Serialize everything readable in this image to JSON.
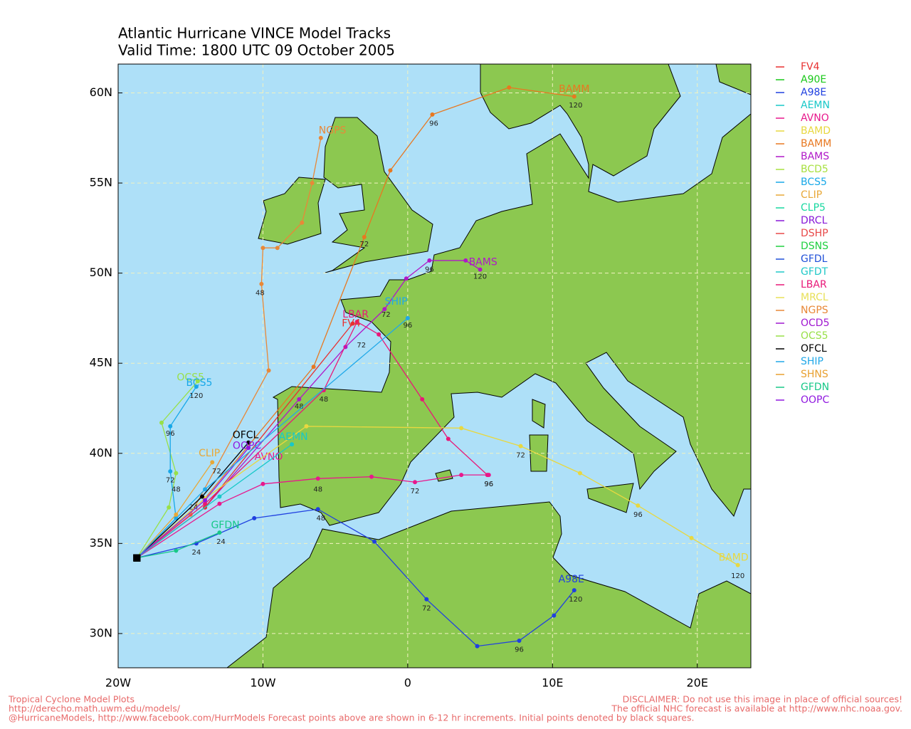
{
  "header": {
    "title": "Atlantic Hurricane VINCE Model Tracks",
    "subtitle": "Valid Time: 1800 UTC 09 October 2005"
  },
  "map": {
    "lon_range": [
      -20,
      23.7
    ],
    "lat_range": [
      28.1,
      61.6
    ],
    "lat_ticks": [
      {
        "value": 30,
        "label": "30N"
      },
      {
        "value": 35,
        "label": "35N"
      },
      {
        "value": 40,
        "label": "40N"
      },
      {
        "value": 45,
        "label": "45N"
      },
      {
        "value": 50,
        "label": "50N"
      },
      {
        "value": 55,
        "label": "55N"
      },
      {
        "value": 60,
        "label": "60N"
      }
    ],
    "lon_ticks": [
      {
        "value": -20,
        "label": "20W"
      },
      {
        "value": -10,
        "label": "10W"
      },
      {
        "value": 0,
        "label": "0"
      },
      {
        "value": 10,
        "label": "10E"
      },
      {
        "value": 20,
        "label": "20E"
      }
    ],
    "grid": true
  },
  "legend": [
    {
      "name": "FV4",
      "color": "#e83030"
    },
    {
      "name": "A90E",
      "color": "#18c818"
    },
    {
      "name": "A98E",
      "color": "#2040e0"
    },
    {
      "name": "AEMN",
      "color": "#18c8c8"
    },
    {
      "name": "AVNO",
      "color": "#e8188c"
    },
    {
      "name": "BAMD",
      "color": "#e8d840"
    },
    {
      "name": "BAMM",
      "color": "#e87820"
    },
    {
      "name": "BAMS",
      "color": "#b018c8"
    },
    {
      "name": "BCD5",
      "color": "#a8e040"
    },
    {
      "name": "BCS5",
      "color": "#18a8e8"
    },
    {
      "name": "CLIP",
      "color": "#e8a838"
    },
    {
      "name": "CLP5",
      "color": "#18d8a0"
    },
    {
      "name": "DRCL",
      "color": "#8818d8"
    },
    {
      "name": "DSHP",
      "color": "#e84848"
    },
    {
      "name": "DSNS",
      "color": "#20d040"
    },
    {
      "name": "GFDL",
      "color": "#2050d8"
    },
    {
      "name": "GFDT",
      "color": "#20c8c8"
    },
    {
      "name": "LBAR",
      "color": "#e81878"
    },
    {
      "name": "MRCL",
      "color": "#e8e058"
    },
    {
      "name": "NGPS",
      "color": "#e88838"
    },
    {
      "name": "OCD5",
      "color": "#a018d0"
    },
    {
      "name": "OCS5",
      "color": "#98e048"
    },
    {
      "name": "OFCL",
      "color": "#000000"
    },
    {
      "name": "SHIP",
      "color": "#20a8e8"
    },
    {
      "name": "SHNS",
      "color": "#e8a030"
    },
    {
      "name": "GFDN",
      "color": "#18c888"
    },
    {
      "name": "OOPC",
      "color": "#9018e0"
    }
  ],
  "tracks": [
    {
      "label": "BAMM",
      "color": "#e87820",
      "label_lon": 11.5,
      "label_lat": 60.2,
      "lon": [
        -18.7,
        -14,
        -6.5,
        -3,
        -1.2,
        1.7,
        7,
        11.5
      ],
      "lat": [
        34.2,
        37.5,
        44.8,
        52,
        55.7,
        58.8,
        60.3,
        59.8
      ],
      "hours": [
        {
          "text": "72",
          "lon": -3,
          "lat": 51.6
        },
        {
          "text": "96",
          "lon": 1.8,
          "lat": 58.3
        },
        {
          "text": "120",
          "lon": 11.6,
          "lat": 59.3
        }
      ]
    },
    {
      "label": "NGPS",
      "color": "#e88838",
      "label_lon": -5.2,
      "label_lat": 57.9,
      "lon": [
        -18.7,
        -15,
        -9.6,
        -10.1,
        -10,
        -9,
        -7.3,
        -6.6,
        -6
      ],
      "lat": [
        34.2,
        36.6,
        44.6,
        49.4,
        51.4,
        51.4,
        52.8,
        55,
        57.5
      ],
      "hours": [
        {
          "text": "48",
          "lon": -10.2,
          "lat": 48.9
        }
      ]
    },
    {
      "label": "BAMS",
      "color": "#b018c8",
      "label_lon": 5.2,
      "label_lat": 50.6,
      "lon": [
        -18.7,
        -14,
        -7.5,
        -4.3,
        -1.6,
        -0.1,
        1.5,
        4,
        5
      ],
      "lat": [
        34.2,
        37,
        43,
        45.9,
        48,
        49.7,
        50.7,
        50.7,
        50.2
      ],
      "hours": [
        {
          "text": "48",
          "lon": -7.5,
          "lat": 42.6
        },
        {
          "text": "72",
          "lon": -1.5,
          "lat": 47.7
        },
        {
          "text": "96",
          "lon": 1.5,
          "lat": 50.2
        },
        {
          "text": "120",
          "lon": 5,
          "lat": 49.8
        }
      ]
    },
    {
      "label": "LBAR",
      "color": "#e81878",
      "label_lon": -3.6,
      "label_lat": 47.7,
      "lon": [
        -18.7,
        -14,
        -5.8,
        -3.5,
        -2,
        1,
        2.8,
        5.5
      ],
      "lat": [
        34.2,
        37.2,
        43.5,
        47.3,
        46.6,
        43,
        40.8,
        38.8
      ],
      "hours": [
        {
          "text": "48",
          "lon": -5.8,
          "lat": 43
        },
        {
          "text": "72",
          "lon": -3.2,
          "lat": 46
        },
        {
          "text": "96",
          "lon": 5.6,
          "lat": 38.3
        }
      ]
    },
    {
      "label": "FV4",
      "color": "#e83030",
      "label_lon": -3.9,
      "label_lat": 47.2,
      "lon": [
        -18.7,
        -14,
        -3.8
      ],
      "lat": [
        34.2,
        37,
        47.2
      ],
      "hours": []
    },
    {
      "label": "AVNO",
      "color": "#e8188c",
      "label_lon": -9.6,
      "label_lat": 39.8,
      "lon": [
        -18.7,
        -13,
        -10,
        -6.2,
        -2.5,
        0.5,
        3.7,
        5.6
      ],
      "lat": [
        34.2,
        37.2,
        38.3,
        38.6,
        38.7,
        38.4,
        38.8,
        38.8
      ],
      "hours": [
        {
          "text": "48",
          "lon": -6.2,
          "lat": 38
        },
        {
          "text": "72",
          "lon": 0.5,
          "lat": 37.9
        },
        {
          "text": "96",
          "lon": 5.6,
          "lat": 38.3
        }
      ]
    },
    {
      "label": "BAMD",
      "color": "#e8d840",
      "label_lon": 22.5,
      "label_lat": 34.2,
      "lon": [
        -18.7,
        -14,
        -7,
        3.7,
        7.8,
        11.9,
        15.9,
        19.6,
        22.8
      ],
      "lat": [
        34.2,
        37.5,
        41.5,
        41.4,
        40.4,
        38.9,
        37.1,
        35.3,
        33.8
      ],
      "hours": [
        {
          "text": "72",
          "lon": 7.8,
          "lat": 39.9
        },
        {
          "text": "96",
          "lon": 15.9,
          "lat": 36.6
        },
        {
          "text": "120",
          "lon": 22.8,
          "lat": 33.2
        }
      ]
    },
    {
      "label": "A98E",
      "color": "#2040e0",
      "label_lon": 11.3,
      "label_lat": 33,
      "lon": [
        -18.7,
        -14.6,
        -10.6,
        -6.2,
        -2.3,
        1.3,
        4.8,
        7.7,
        10.1,
        11.5
      ],
      "lat": [
        34.2,
        35,
        36.4,
        36.9,
        35.1,
        31.9,
        29.3,
        29.6,
        31,
        32.4
      ],
      "hours": [
        {
          "text": "24",
          "lon": -14.6,
          "lat": 34.5
        },
        {
          "text": "48",
          "lon": -6,
          "lat": 36.4
        },
        {
          "text": "72",
          "lon": 1.3,
          "lat": 31.4
        },
        {
          "text": "96",
          "lon": 7.7,
          "lat": 29.1
        },
        {
          "text": "120",
          "lon": 11.6,
          "lat": 31.9
        }
      ]
    },
    {
      "label": "AEMN",
      "color": "#18c8c8",
      "label_lon": -7.9,
      "label_lat": 40.9,
      "lon": [
        -18.7,
        -13,
        -8
      ],
      "lat": [
        34.2,
        37.6,
        40.5
      ],
      "hours": []
    },
    {
      "label": "OCS5",
      "color": "#98e048",
      "label_lon": -15,
      "label_lat": 44.2,
      "lon": [
        -18.7,
        -16.5,
        -16,
        -17,
        -14.5
      ],
      "lat": [
        34.2,
        37,
        38.9,
        41.7,
        44
      ],
      "hours": []
    },
    {
      "label": "BCS5",
      "color": "#18a8e8",
      "label_lon": -14.4,
      "label_lat": 43.9,
      "lon": [
        -18.7,
        -16,
        -16.4,
        -16.4,
        -14.6
      ],
      "lat": [
        34.2,
        36.4,
        39,
        41.5,
        43.7
      ],
      "hours": [
        {
          "text": "72",
          "lon": -16.4,
          "lat": 38.5
        },
        {
          "text": "96",
          "lon": -16.4,
          "lat": 41.1
        },
        {
          "text": "120",
          "lon": -14.6,
          "lat": 43.2
        }
      ]
    },
    {
      "label": "GFDN",
      "color": "#18c888",
      "label_lon": -12.6,
      "label_lat": 36,
      "lon": [
        -18.7,
        -16,
        -13
      ],
      "lat": [
        34.2,
        34.6,
        35.6
      ],
      "hours": [
        {
          "text": "24",
          "lon": -12.9,
          "lat": 35.1
        }
      ]
    },
    {
      "label": "OFCL",
      "color": "#000000",
      "label_lon": -11.2,
      "label_lat": 41,
      "lon": [
        -18.7,
        -14.2,
        -11
      ],
      "lat": [
        34.2,
        37.6,
        40.6
      ],
      "hours": [
        {
          "text": "24",
          "lon": -14.8,
          "lat": 37
        },
        {
          "text": "48",
          "lon": -16,
          "lat": 38
        }
      ]
    },
    {
      "label": "OOPC",
      "color": "#9018e0",
      "label_lon": -11.1,
      "label_lat": 40.4,
      "lon": [
        -18.7,
        -14,
        -11
      ],
      "lat": [
        34.2,
        37.4,
        40.3
      ],
      "hours": []
    },
    {
      "label": "CLIP",
      "color": "#e8a838",
      "label_lon": -13.7,
      "label_lat": 40,
      "lon": [
        -18.7,
        -16,
        -13.5
      ],
      "lat": [
        34.2,
        36.6,
        39.5
      ],
      "hours": [
        {
          "text": "72",
          "lon": -13.2,
          "lat": 39
        }
      ]
    },
    {
      "label": "SHIP",
      "color": "#20a8e8",
      "label_lon": -0.8,
      "label_lat": 48.4,
      "lon": [
        -18.7,
        -14,
        0
      ],
      "lat": [
        34.2,
        38,
        47.5
      ],
      "hours": [
        {
          "text": "96",
          "lon": 0,
          "lat": 47.1
        }
      ]
    }
  ],
  "footer": {
    "left": [
      "Tropical Cyclone Model Plots",
      "http://derecho.math.uwm.edu/models/",
      "@HurricaneModels, http://www.facebook.com/HurrModels  Forecast points above are shown in 6-12 hr increments. Initial points denoted by black squares."
    ],
    "right": [
      "DISCLAIMER: Do not use this image in place of official sources!",
      "The official NHC forecast is available at http://www.nhc.noaa.gov."
    ]
  }
}
